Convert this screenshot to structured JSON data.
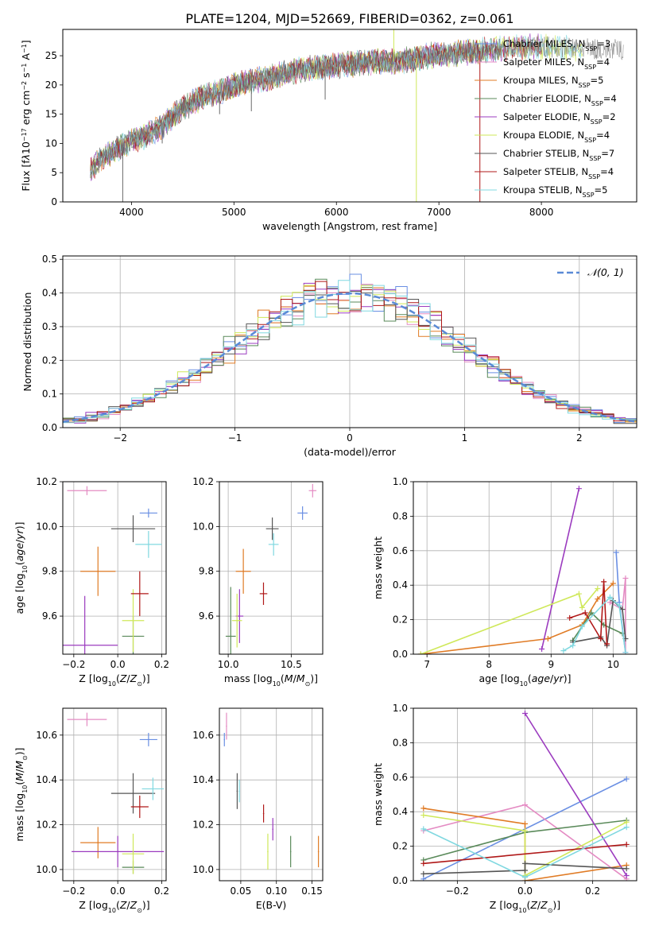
{
  "title": "PLATE=1204, MJD=52669, FIBERID=0362, z=0.061",
  "colors": {
    "Chabrier MILES": "#6a8fe3",
    "Salpeter MILES": "#e48bc3",
    "Kroupa MILES": "#e07b25",
    "Chabrier ELODIE": "#5a8a5a",
    "Salpeter ELODIE": "#9b3bbf",
    "Kroupa ELODIE": "#cfe85a",
    "Chabrier STELIB": "#555555",
    "Salpeter STELIB": "#b01818",
    "Kroupa STELIB": "#80d8e0"
  },
  "models": [
    {
      "name": "Chabrier MILES",
      "nssp": "3"
    },
    {
      "name": "Salpeter MILES",
      "nssp": "4"
    },
    {
      "name": "Kroupa MILES",
      "nssp": "5"
    },
    {
      "name": "Chabrier ELODIE",
      "nssp": "4"
    },
    {
      "name": "Salpeter ELODIE",
      "nssp": "2"
    },
    {
      "name": "Kroupa ELODIE",
      "nssp": "4"
    },
    {
      "name": "Chabrier STELIB",
      "nssp": "7"
    },
    {
      "name": "Salpeter STELIB",
      "nssp": "4"
    },
    {
      "name": "Kroupa STELIB",
      "nssp": "5"
    }
  ],
  "chart_data": [
    {
      "type": "line",
      "id": "spectrum",
      "xlabel": "wavelength [Angstrom, rest frame]",
      "ylabel_html": "Flux [f<tspan font-style='italic'>λ</tspan>10<tspan baseline-shift='super' font-size='8'>−17</tspan> erg cm<tspan baseline-shift='super' font-size='8'>−2</tspan> s<tspan baseline-shift='super' font-size='8'>−1</tspan> A<tspan baseline-shift='super' font-size='8'>−1</tspan>]",
      "xlim": [
        3330,
        8930
      ],
      "ylim": [
        0,
        29.5
      ],
      "xticks": [
        4000,
        5000,
        6000,
        7000,
        8000
      ],
      "yticks": [
        0,
        5,
        10,
        15,
        20,
        25
      ],
      "continuum": [
        [
          3600,
          5.5
        ],
        [
          3700,
          7.5
        ],
        [
          3900,
          9.5
        ],
        [
          4000,
          10.5
        ],
        [
          4100,
          11
        ],
        [
          4300,
          13
        ],
        [
          4500,
          16
        ],
        [
          4700,
          18
        ],
        [
          4900,
          19
        ],
        [
          5100,
          20.5
        ],
        [
          5300,
          21
        ],
        [
          5500,
          22
        ],
        [
          5800,
          23
        ],
        [
          6100,
          23.5
        ],
        [
          6400,
          24
        ],
        [
          6600,
          24
        ],
        [
          6900,
          25
        ],
        [
          7200,
          25.5
        ],
        [
          7500,
          26
        ],
        [
          7800,
          26.5
        ],
        [
          8100,
          26.5
        ],
        [
          8400,
          26.2
        ],
        [
          8800,
          26
        ]
      ],
      "spikes": [
        [
          3915,
          0
        ],
        [
          4300,
          10
        ],
        [
          4860,
          15
        ],
        [
          5170,
          15.5
        ],
        [
          5890,
          17.5
        ],
        [
          6560,
          29.5
        ],
        [
          6780,
          0
        ],
        [
          7400,
          0
        ]
      ]
    },
    {
      "type": "line",
      "id": "residuals",
      "xlabel": "(data-model)/error",
      "ylabel": "Normed distribution",
      "legend_label": "𝒩(0, 1)",
      "xlim": [
        -2.5,
        2.5
      ],
      "ylim": [
        0,
        0.51
      ],
      "xticks": [
        -2,
        -1,
        0,
        1,
        2
      ],
      "yticks": [
        0.0,
        0.1,
        0.2,
        0.3,
        0.4,
        0.5
      ],
      "bin_width": 0.1
    },
    {
      "type": "scatter",
      "id": "age-vs-Z",
      "xlabel_html": "Z [log<tspan baseline-shift='sub' font-size='8'>10</tspan>(<tspan font-style='italic'>Z</tspan>/<tspan font-style='italic'>Z</tspan><tspan baseline-shift='sub' font-size='8'>⊙</tspan>)]",
      "ylabel_html": "age  [log<tspan baseline-shift='sub' font-size='8'>10</tspan>(<tspan font-style='italic'>age</tspan>/<tspan font-style='italic'>yr</tspan>)]",
      "xlim": [
        -0.25,
        0.22
      ],
      "ylim": [
        9.43,
        10.2
      ],
      "xticks": [
        -0.2,
        0.0,
        0.2
      ],
      "yticks": [
        9.6,
        9.8,
        10.0,
        10.2
      ],
      "points": [
        {
          "model": "Chabrier MILES",
          "x": 0.14,
          "y": 10.06,
          "xerr": 0.04,
          "yerr": 0.02
        },
        {
          "model": "Salpeter MILES",
          "x": -0.14,
          "y": 10.16,
          "xerr": 0.09,
          "yerr": 0.02
        },
        {
          "model": "Kroupa MILES",
          "x": -0.09,
          "y": 9.8,
          "xerr": 0.08,
          "yerr": 0.11
        },
        {
          "model": "Chabrier ELODIE",
          "x": 0.07,
          "y": 9.51,
          "xerr": 0.05,
          "yerr": 0.09
        },
        {
          "model": "Salpeter ELODIE",
          "x": -0.15,
          "y": 9.47,
          "xerr": 0.15,
          "yerr": 0.22
        },
        {
          "model": "Kroupa ELODIE",
          "x": 0.07,
          "y": 9.58,
          "xerr": 0.05,
          "yerr": 0.14
        },
        {
          "model": "Chabrier STELIB",
          "x": 0.07,
          "y": 9.99,
          "xerr": 0.1,
          "yerr": 0.06
        },
        {
          "model": "Salpeter STELIB",
          "x": 0.1,
          "y": 9.7,
          "xerr": 0.04,
          "yerr": 0.1
        },
        {
          "model": "Kroupa STELIB",
          "x": 0.14,
          "y": 9.92,
          "xerr": 0.06,
          "yerr": 0.06
        }
      ]
    },
    {
      "type": "scatter",
      "id": "age-vs-mass",
      "xlabel_html": "mass [log<tspan baseline-shift='sub' font-size='8'>10</tspan>(<tspan font-style='italic'>M</tspan>/<tspan font-style='italic'>M</tspan><tspan baseline-shift='sub' font-size='8'>⊙</tspan>)]",
      "xlim": [
        9.93,
        10.75
      ],
      "ylim": [
        9.43,
        10.2
      ],
      "xticks": [
        10.0,
        10.5
      ],
      "yticks": [
        9.6,
        9.8,
        10.0,
        10.2
      ],
      "points": [
        {
          "model": "Chabrier MILES",
          "x": 10.59,
          "y": 10.06,
          "xerr": 0.04,
          "yerr": 0.03
        },
        {
          "model": "Salpeter MILES",
          "x": 10.67,
          "y": 10.16,
          "xerr": 0.03,
          "yerr": 0.03
        },
        {
          "model": "Kroupa MILES",
          "x": 10.12,
          "y": 9.8,
          "xerr": 0.06,
          "yerr": 0.1
        },
        {
          "model": "Chabrier ELODIE",
          "x": 10.02,
          "y": 9.51,
          "xerr": 0.04,
          "yerr": 0.22
        },
        {
          "model": "Salpeter ELODIE",
          "x": 10.09,
          "y": 9.6,
          "xerr": 0.03,
          "yerr": 0.12
        },
        {
          "model": "Kroupa ELODIE",
          "x": 10.07,
          "y": 9.58,
          "xerr": 0.04,
          "yerr": 0.12
        },
        {
          "model": "Chabrier STELIB",
          "x": 10.35,
          "y": 9.99,
          "xerr": 0.05,
          "yerr": 0.05
        },
        {
          "model": "Salpeter STELIB",
          "x": 10.28,
          "y": 9.7,
          "xerr": 0.03,
          "yerr": 0.05
        },
        {
          "model": "Kroupa STELIB",
          "x": 10.36,
          "y": 9.92,
          "xerr": 0.04,
          "yerr": 0.05
        }
      ]
    },
    {
      "type": "line",
      "id": "weight-vs-age",
      "xlabel_html": "age  [log<tspan baseline-shift='sub' font-size='8'>10</tspan>(<tspan font-style='italic'>age</tspan>/<tspan font-style='italic'>yr</tspan>)]",
      "ylabel": "mass weight",
      "xlim": [
        6.78,
        10.38
      ],
      "ylim": [
        0,
        1.0
      ],
      "xticks": [
        7,
        8,
        9,
        10
      ],
      "yticks": [
        0.0,
        0.2,
        0.4,
        0.6,
        0.8,
        1.0
      ],
      "series": [
        {
          "model": "Chabrier MILES",
          "x": [
            10.05,
            10.1,
            10.2
          ],
          "y": [
            0.59,
            0.3,
            0.01
          ]
        },
        {
          "model": "Salpeter MILES",
          "x": [
            9.95,
            10.15,
            10.2,
            10.2
          ],
          "y": [
            0.3,
            0.26,
            0.44,
            0.01
          ]
        },
        {
          "model": "Kroupa MILES",
          "x": [
            6.9,
            8.95,
            9.5,
            9.75,
            10.0
          ],
          "y": [
            0.0,
            0.09,
            0.17,
            0.32,
            0.41
          ]
        },
        {
          "model": "Chabrier ELODIE",
          "x": [
            9.35,
            9.65,
            9.85,
            10.15
          ],
          "y": [
            0.08,
            0.24,
            0.17,
            0.12
          ]
        },
        {
          "model": "Salpeter ELODIE",
          "x": [
            8.85,
            9.45
          ],
          "y": [
            0.03,
            0.96
          ]
        },
        {
          "model": "Kroupa ELODIE",
          "x": [
            6.9,
            9.45,
            9.5,
            9.75
          ],
          "y": [
            0.0,
            0.35,
            0.27,
            0.38
          ]
        },
        {
          "model": "Chabrier STELIB",
          "x": [
            9.35,
            9.8,
            9.9,
            10.0,
            10.15,
            10.2
          ],
          "y": [
            0.07,
            0.1,
            0.05,
            0.31,
            0.26,
            0.09
          ]
        },
        {
          "model": "Salpeter STELIB",
          "x": [
            9.3,
            9.55,
            9.8,
            9.85,
            9.9
          ],
          "y": [
            0.21,
            0.24,
            0.09,
            0.42,
            0.06
          ]
        },
        {
          "model": "Kroupa STELIB",
          "x": [
            9.2,
            9.35,
            9.5,
            9.95,
            10.1,
            10.2
          ],
          "y": [
            0.02,
            0.05,
            0.16,
            0.33,
            0.28,
            0.01
          ]
        }
      ]
    },
    {
      "type": "scatter",
      "id": "mass-vs-Z",
      "xlabel_html": "Z [log<tspan baseline-shift='sub' font-size='8'>10</tspan>(<tspan font-style='italic'>Z</tspan>/<tspan font-style='italic'>Z</tspan><tspan baseline-shift='sub' font-size='8'>⊙</tspan>)]",
      "ylabel_html": "mass [log<tspan baseline-shift='sub' font-size='8'>10</tspan>(<tspan font-style='italic'>M</tspan>/<tspan font-style='italic'>M</tspan><tspan baseline-shift='sub' font-size='8'>⊙</tspan>)]",
      "xlim": [
        -0.25,
        0.22
      ],
      "ylim": [
        9.95,
        10.72
      ],
      "xticks": [
        -0.2,
        0.0,
        0.2
      ],
      "yticks": [
        10.0,
        10.2,
        10.4,
        10.6
      ],
      "points": [
        {
          "model": "Chabrier MILES",
          "x": 0.14,
          "y": 10.58,
          "xerr": 0.04,
          "yerr": 0.03
        },
        {
          "model": "Salpeter MILES",
          "x": -0.14,
          "y": 10.67,
          "xerr": 0.09,
          "yerr": 0.03
        },
        {
          "model": "Kroupa MILES",
          "x": -0.09,
          "y": 10.12,
          "xerr": 0.08,
          "yerr": 0.07
        },
        {
          "model": "Chabrier ELODIE",
          "x": 0.07,
          "y": 10.01,
          "xerr": 0.05,
          "yerr": 0.03
        },
        {
          "model": "Salpeter ELODIE",
          "x": 0.0,
          "y": 10.08,
          "xerr": 0.21,
          "yerr": 0.07
        },
        {
          "model": "Kroupa ELODIE",
          "x": 0.07,
          "y": 10.07,
          "xerr": 0.05,
          "yerr": 0.09
        },
        {
          "model": "Chabrier STELIB",
          "x": 0.07,
          "y": 10.34,
          "xerr": 0.1,
          "yerr": 0.09
        },
        {
          "model": "Salpeter STELIB",
          "x": 0.1,
          "y": 10.28,
          "xerr": 0.04,
          "yerr": 0.05
        },
        {
          "model": "Kroupa STELIB",
          "x": 0.16,
          "y": 10.36,
          "xerr": 0.05,
          "yerr": 0.05
        }
      ]
    },
    {
      "type": "scatter",
      "id": "mass-vs-EBV",
      "xlabel": "E(B-V)",
      "xlim": [
        0.02,
        0.165
      ],
      "ylim": [
        9.95,
        10.72
      ],
      "xticks": [
        0.05,
        0.1,
        0.15
      ],
      "yticks": [
        10.0,
        10.2,
        10.4,
        10.6
      ],
      "points": [
        {
          "model": "Chabrier MILES",
          "x": 0.027,
          "y": 10.58,
          "xerr": 0,
          "yerr": 0.03
        },
        {
          "model": "Salpeter MILES",
          "x": 0.03,
          "y": 10.64,
          "xerr": 0,
          "yerr": 0.06
        },
        {
          "model": "Kroupa MILES",
          "x": 0.159,
          "y": 10.08,
          "xerr": 0,
          "yerr": 0.07
        },
        {
          "model": "Chabrier ELODIE",
          "x": 0.12,
          "y": 10.08,
          "xerr": 0,
          "yerr": 0.07
        },
        {
          "model": "Salpeter ELODIE",
          "x": 0.095,
          "y": 10.18,
          "xerr": 0,
          "yerr": 0.05
        },
        {
          "model": "Kroupa ELODIE",
          "x": 0.088,
          "y": 10.08,
          "xerr": 0,
          "yerr": 0.08
        },
        {
          "model": "Chabrier STELIB",
          "x": 0.045,
          "y": 10.35,
          "xerr": 0,
          "yerr": 0.08
        },
        {
          "model": "Salpeter STELIB",
          "x": 0.082,
          "y": 10.25,
          "xerr": 0,
          "yerr": 0.04
        },
        {
          "model": "Kroupa STELIB",
          "x": 0.048,
          "y": 10.35,
          "xerr": 0,
          "yerr": 0.05
        }
      ]
    },
    {
      "type": "line",
      "id": "weight-vs-Z",
      "xlabel_html": "Z [log<tspan baseline-shift='sub' font-size='8'>10</tspan>(<tspan font-style='italic'>Z</tspan>/<tspan font-style='italic'>Z</tspan><tspan baseline-shift='sub' font-size='8'>⊙</tspan>)]",
      "ylabel": "mass weight",
      "xlim": [
        -0.33,
        0.33
      ],
      "ylim": [
        0,
        1.0
      ],
      "xticks": [
        -0.2,
        0.0,
        0.2
      ],
      "yticks": [
        0.0,
        0.2,
        0.4,
        0.6,
        0.8,
        1.0
      ],
      "series": [
        {
          "model": "Chabrier MILES",
          "x": [
            -0.3,
            0.3
          ],
          "y": [
            0.01,
            0.59
          ]
        },
        {
          "model": "Salpeter MILES",
          "x": [
            -0.3,
            0.0,
            0.3
          ],
          "y": [
            0.29,
            0.44,
            0.01
          ]
        },
        {
          "model": "Kroupa MILES",
          "x": [
            -0.3,
            0.0,
            0.0,
            0.3
          ],
          "y": [
            0.42,
            0.33,
            0.0,
            0.09
          ]
        },
        {
          "model": "Chabrier ELODIE",
          "x": [
            -0.3,
            0.0,
            0.3
          ],
          "y": [
            0.12,
            0.28,
            0.35
          ]
        },
        {
          "model": "Salpeter ELODIE",
          "x": [
            0.0,
            0.3
          ],
          "y": [
            0.97,
            0.03
          ]
        },
        {
          "model": "Kroupa ELODIE",
          "x": [
            -0.3,
            0.0,
            0.0,
            0.3
          ],
          "y": [
            0.38,
            0.29,
            0.03,
            0.34
          ]
        },
        {
          "model": "Chabrier STELIB",
          "x": [
            -0.3,
            0.0,
            0.0,
            0.3
          ],
          "y": [
            0.04,
            0.06,
            0.1,
            0.07
          ]
        },
        {
          "model": "Salpeter STELIB",
          "x": [
            -0.3,
            0.3
          ],
          "y": [
            0.1,
            0.21
          ]
        },
        {
          "model": "Kroupa STELIB",
          "x": [
            -0.3,
            0.0,
            0.3
          ],
          "y": [
            0.3,
            0.02,
            0.31
          ]
        }
      ]
    }
  ]
}
